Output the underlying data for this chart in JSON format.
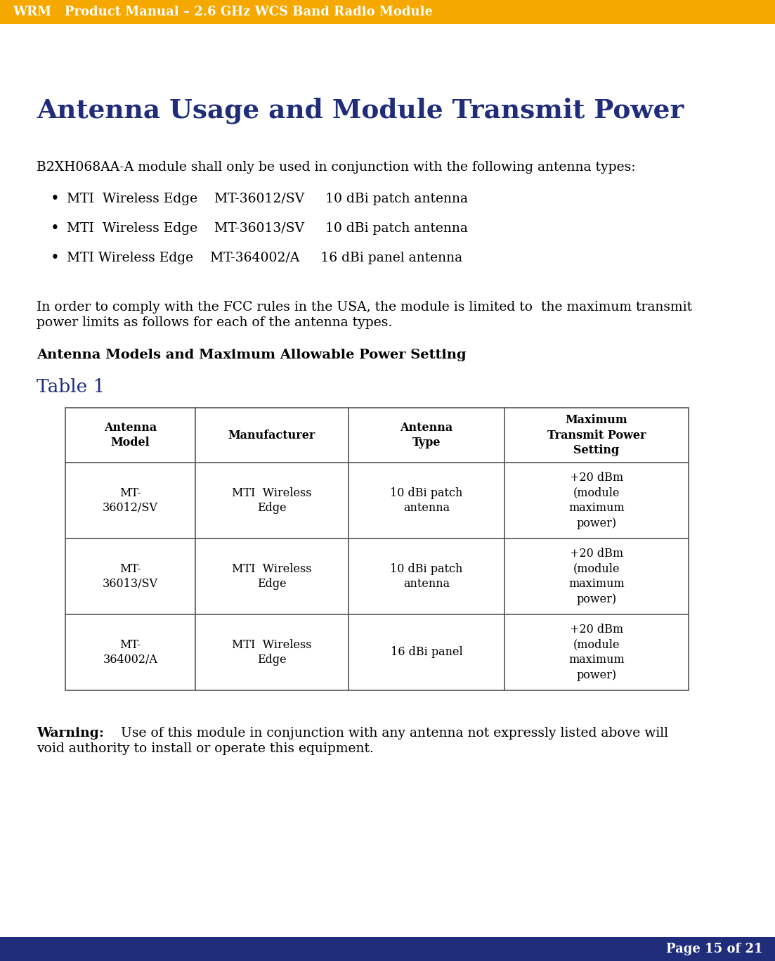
{
  "header_text": "WRM   Product Manual – 2.6 GHz WCS Band Radio Module",
  "header_bg": "#F5A800",
  "footer_text": "Page 15 of 21",
  "footer_bg": "#1F2D7B",
  "section_title": "Antenna Usage and Module Transmit Power",
  "section_title_color": "#1F2D7B",
  "intro_text": "B2XH068AA-A module shall only be used in conjunction with the following antenna types:",
  "bullets": [
    "MTI  Wireless Edge    MT-36012/SV     10 dBi patch antenna",
    "MTI  Wireless Edge    MT-36013/SV     10 dBi patch antenna",
    "MTI Wireless Edge    MT-364002/A     16 dBi panel antenna"
  ],
  "paragraph_line1": "In order to comply with the FCC rules in the USA, the module is limited to  the maximum transmit",
  "paragraph_line2": "power limits as follows for each of the antenna types.",
  "table_heading": "Antenna Models and Maximum Allowable Power Setting",
  "table_label": "Table 1",
  "table_label_color": "#1F2D7B",
  "col_headers": [
    "Antenna\nModel",
    "Manufacturer",
    "Antenna\nType",
    "Maximum\nTransmit Power\nSetting"
  ],
  "table_data": [
    [
      "MT-\n36012/SV",
      "MTI  Wireless\nEdge",
      "10 dBi patch\nantenna",
      "+20 dBm\n(module\nmaximum\npower)"
    ],
    [
      "MT-\n36013/SV",
      "MTI  Wireless\nEdge",
      "10 dBi patch\nantenna",
      "+20 dBm\n(module\nmaximum\npower)"
    ],
    [
      "MT-\n364002/A",
      "MTI  Wireless\nEdge",
      "16 dBi panel",
      "+20 dBm\n(module\nmaximum\npower)"
    ]
  ],
  "warning_bold": "Warning:",
  "warning_rest": "        Use of this module in conjunction with any antenna not expressly listed above will",
  "warning_line2": "void authority to install or operate this equipment.",
  "bg_color": "#FFFFFF",
  "text_color": "#000000",
  "table_border_color": "#555555",
  "body_font_size": 13.5,
  "header_font_size": 13,
  "footer_font_size": 13,
  "section_title_fontsize": 27,
  "table_header_fontsize": 11.5,
  "table_data_fontsize": 11.5,
  "table_label_fontsize": 19
}
